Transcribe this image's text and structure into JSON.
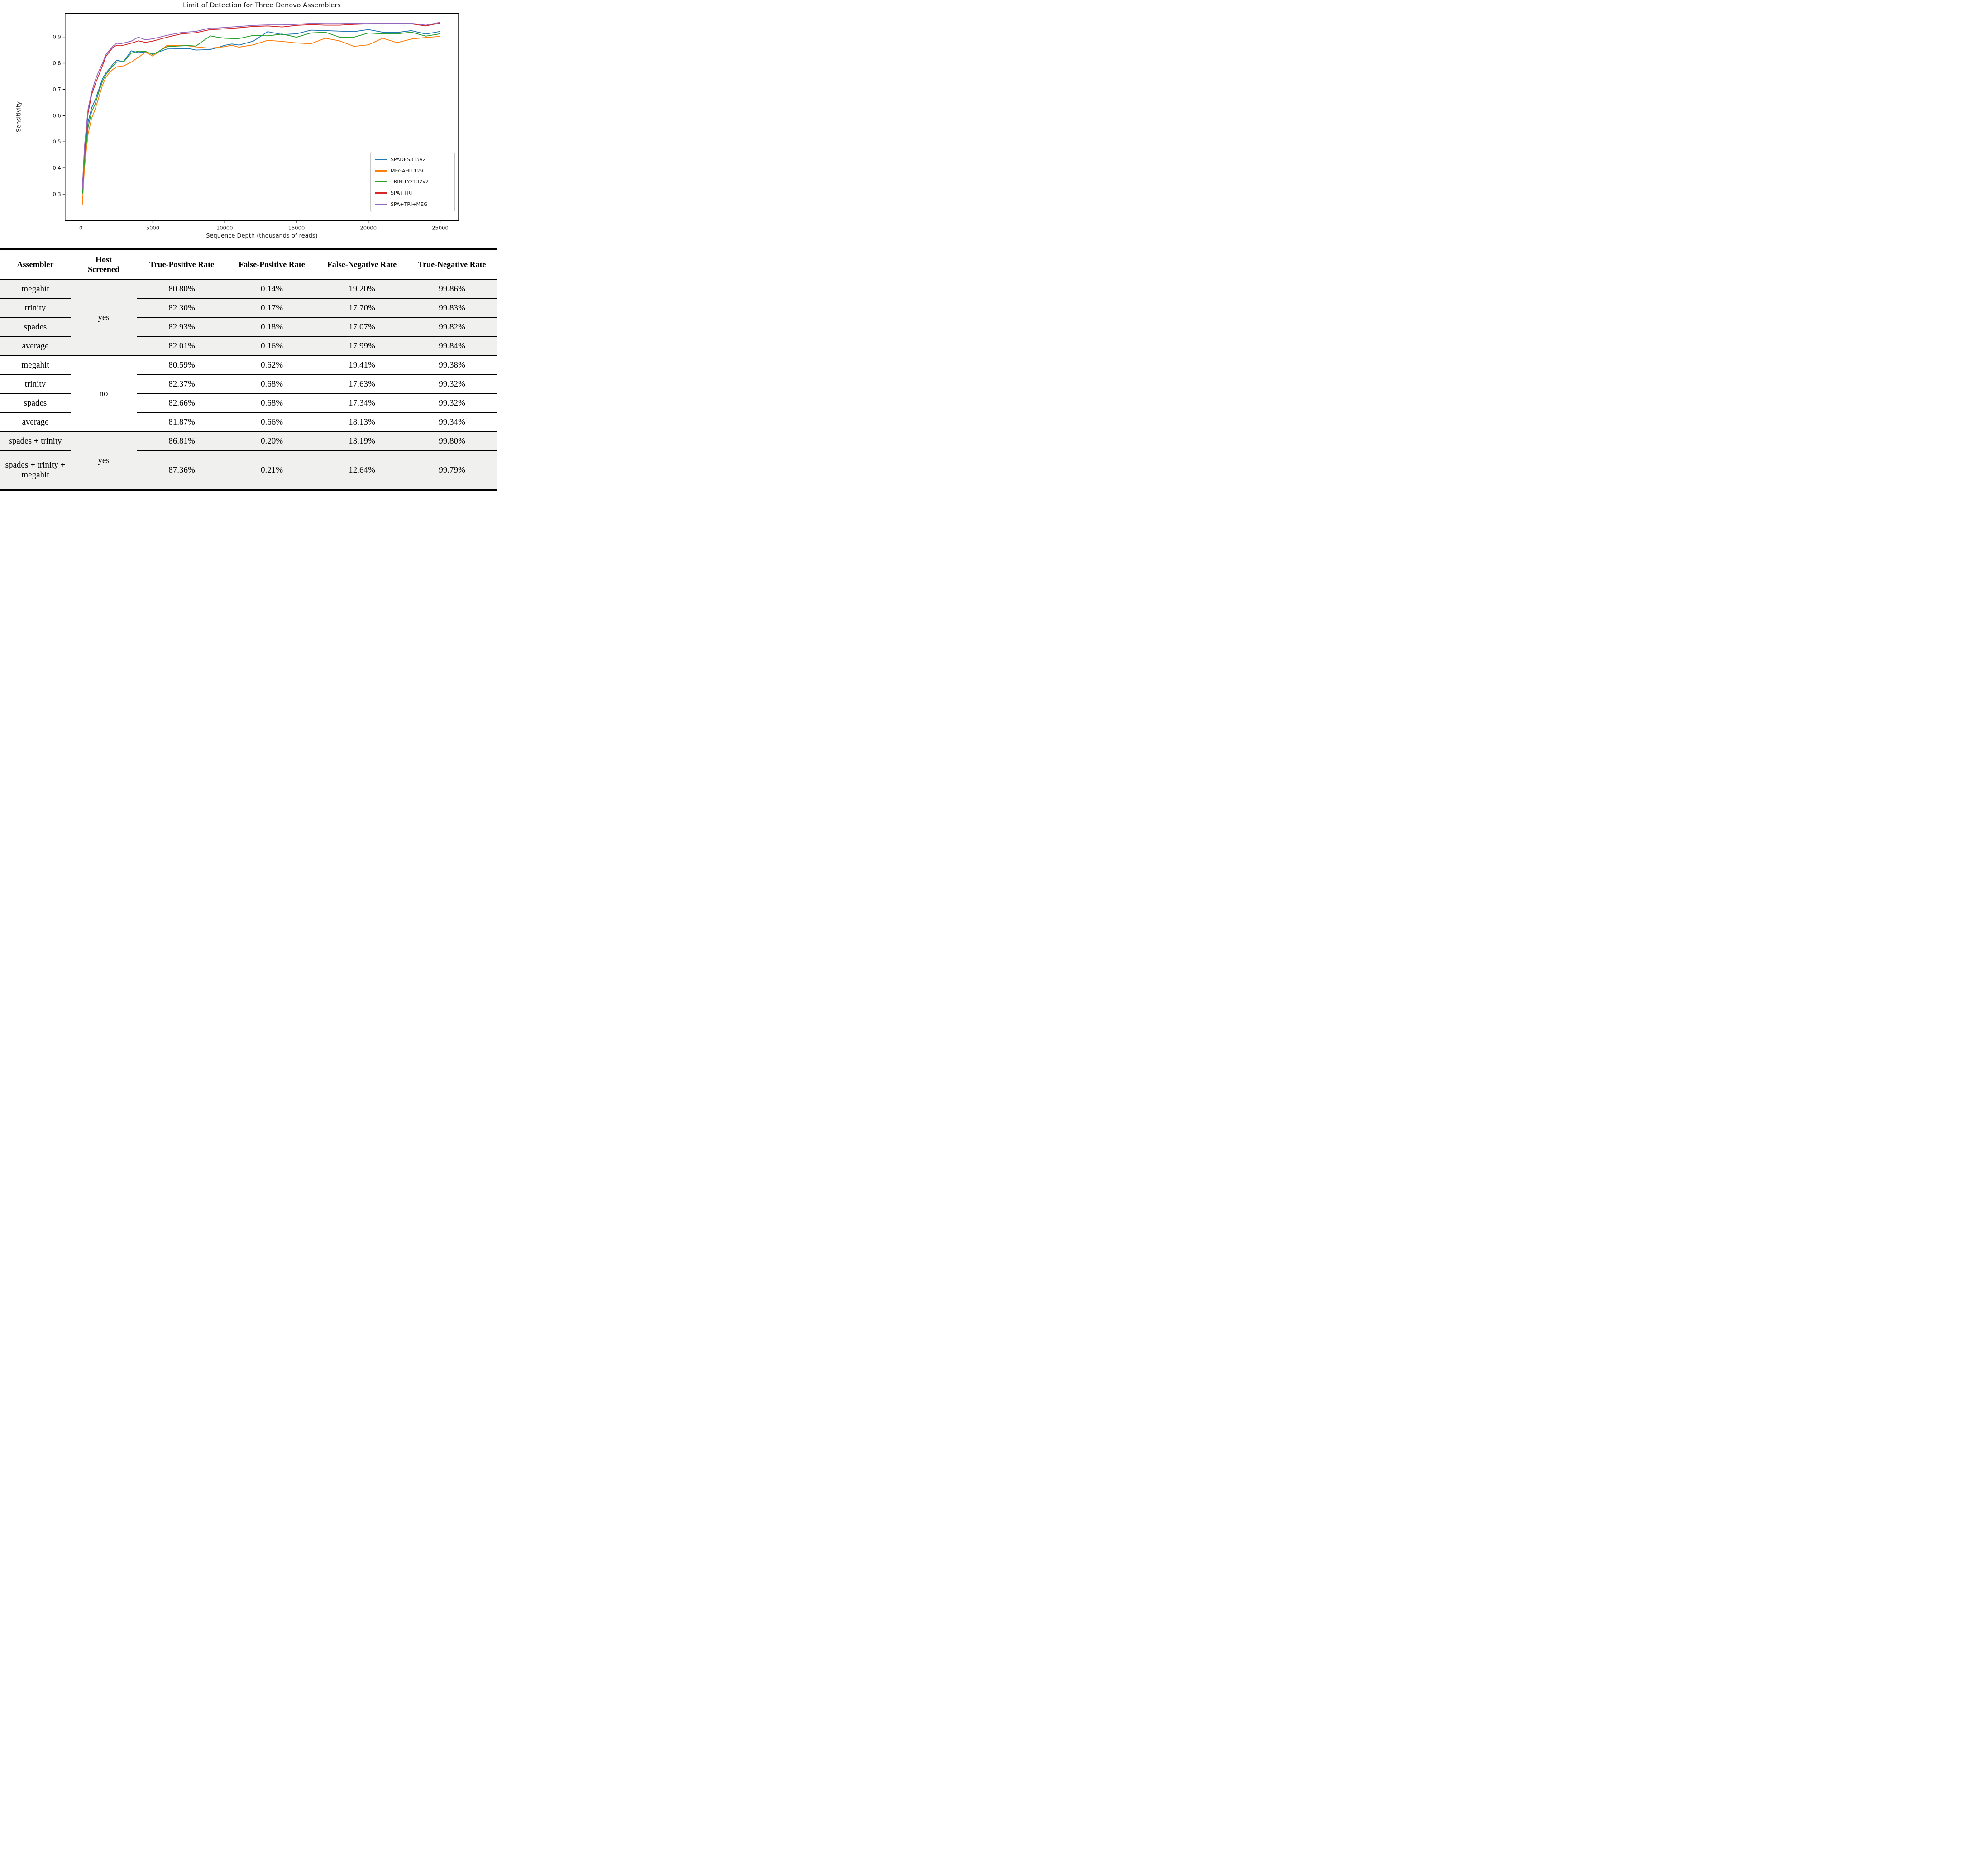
{
  "chart_data": {
    "type": "line",
    "title": "Limit of Detection for Three Denovo Assemblers",
    "xlabel": "Sequence Depth (thousands of reads)",
    "ylabel": "Sensitivity",
    "grid": false,
    "legend_position": "lower right inside plot",
    "xlim": [
      -1100,
      26275
    ],
    "ylim": [
      0.199,
      0.99
    ],
    "x_ticks": [
      0,
      5000,
      10000,
      15000,
      20000,
      25000
    ],
    "y_ticks": [
      0.3,
      0.4,
      0.5,
      0.6,
      0.7,
      0.8,
      0.9
    ],
    "x": [
      100,
      250,
      500,
      750,
      1000,
      1250,
      1500,
      1750,
      2000,
      2250,
      2500,
      2750,
      3000,
      3500,
      4000,
      4500,
      5000,
      6000,
      7000,
      7500,
      8000,
      9000,
      9500,
      10000,
      10500,
      11000,
      12000,
      13000,
      14000,
      15000,
      16000,
      17000,
      18000,
      19000,
      20000,
      21000,
      22000,
      23000,
      24000,
      25000
    ],
    "series": [
      {
        "name": "SPADES315v2",
        "color": "#1f77b4",
        "values": [
          0.305,
          0.45,
          0.575,
          0.63,
          0.66,
          0.7,
          0.74,
          0.763,
          0.78,
          0.797,
          0.812,
          0.808,
          0.808,
          0.847,
          0.84,
          0.843,
          0.835,
          0.854,
          0.855,
          0.856,
          0.85,
          0.852,
          0.859,
          0.868,
          0.873,
          0.869,
          0.884,
          0.92,
          0.909,
          0.912,
          0.926,
          0.924,
          0.922,
          0.92,
          0.928,
          0.918,
          0.917,
          0.924,
          0.911,
          0.921
        ]
      },
      {
        "name": "MEGAHIT129",
        "color": "#ff7f0e",
        "values": [
          0.26,
          0.4,
          0.53,
          0.59,
          0.625,
          0.67,
          0.715,
          0.747,
          0.765,
          0.777,
          0.786,
          0.788,
          0.79,
          0.804,
          0.822,
          0.842,
          0.827,
          0.868,
          0.868,
          0.866,
          0.862,
          0.857,
          0.86,
          0.863,
          0.868,
          0.861,
          0.87,
          0.887,
          0.883,
          0.877,
          0.874,
          0.895,
          0.885,
          0.864,
          0.87,
          0.895,
          0.878,
          0.892,
          0.898,
          0.902
        ]
      },
      {
        "name": "TRINITY2132v2",
        "color": "#2ca02c",
        "values": [
          0.3,
          0.43,
          0.555,
          0.615,
          0.645,
          0.69,
          0.73,
          0.757,
          0.775,
          0.79,
          0.805,
          0.805,
          0.806,
          0.838,
          0.846,
          0.845,
          0.833,
          0.863,
          0.866,
          0.867,
          0.865,
          0.904,
          0.899,
          0.895,
          0.894,
          0.894,
          0.906,
          0.904,
          0.911,
          0.899,
          0.915,
          0.918,
          0.899,
          0.899,
          0.915,
          0.912,
          0.912,
          0.918,
          0.903,
          0.912
        ]
      },
      {
        "name": "SPA+TRI",
        "color": "#d62728",
        "values": [
          0.322,
          0.47,
          0.61,
          0.68,
          0.72,
          0.755,
          0.79,
          0.826,
          0.845,
          0.861,
          0.868,
          0.866,
          0.869,
          0.876,
          0.885,
          0.879,
          0.884,
          0.899,
          0.912,
          0.914,
          0.916,
          0.928,
          0.929,
          0.931,
          0.933,
          0.935,
          0.94,
          0.942,
          0.938,
          0.944,
          0.947,
          0.945,
          0.945,
          0.948,
          0.95,
          0.95,
          0.95,
          0.95,
          0.942,
          0.953
        ]
      },
      {
        "name": "SPA+TRI+MEG",
        "color": "#9467bd",
        "values": [
          0.32,
          0.48,
          0.625,
          0.69,
          0.735,
          0.77,
          0.8,
          0.833,
          0.85,
          0.866,
          0.876,
          0.874,
          0.877,
          0.884,
          0.899,
          0.889,
          0.893,
          0.906,
          0.917,
          0.919,
          0.921,
          0.934,
          0.934,
          0.936,
          0.938,
          0.94,
          0.944,
          0.946,
          0.946,
          0.948,
          0.952,
          0.951,
          0.951,
          0.952,
          0.953,
          0.952,
          0.952,
          0.952,
          0.945,
          0.956
        ]
      }
    ]
  },
  "table": {
    "row_shade_color": "#f0f0ee",
    "rule_color": "#000000",
    "headers": [
      "Assembler",
      "Host Screened",
      "True-Positive Rate",
      "False-Positive Rate",
      "False-Negative Rate",
      "True-Negative Rate"
    ],
    "groups": [
      {
        "host_screened": "yes"
      },
      {
        "host_screened": "no"
      },
      {
        "host_screened": "yes"
      }
    ],
    "rows": [
      {
        "assembler": "megahit",
        "tp": "80.80%",
        "fp": "0.14%",
        "fn": "19.20%",
        "tn": "99.86%"
      },
      {
        "assembler": "trinity",
        "tp": "82.30%",
        "fp": "0.17%",
        "fn": "17.70%",
        "tn": "99.83%"
      },
      {
        "assembler": "spades",
        "tp": "82.93%",
        "fp": "0.18%",
        "fn": "17.07%",
        "tn": "99.82%"
      },
      {
        "assembler": "average",
        "tp": "82.01%",
        "fp": "0.16%",
        "fn": "17.99%",
        "tn": "99.84%"
      },
      {
        "assembler": "megahit",
        "tp": "80.59%",
        "fp": "0.62%",
        "fn": "19.41%",
        "tn": "99.38%"
      },
      {
        "assembler": "trinity",
        "tp": "82.37%",
        "fp": "0.68%",
        "fn": "17.63%",
        "tn": "99.32%"
      },
      {
        "assembler": "spades",
        "tp": "82.66%",
        "fp": "0.68%",
        "fn": "17.34%",
        "tn": "99.32%"
      },
      {
        "assembler": "average",
        "tp": "81.87%",
        "fp": "0.66%",
        "fn": "18.13%",
        "tn": "99.34%"
      },
      {
        "assembler": "spades + trinity",
        "tp": "86.81%",
        "fp": "0.20%",
        "fn": "13.19%",
        "tn": "99.80%"
      },
      {
        "assembler": "spades + trinity + megahit",
        "tp": "87.36%",
        "fp": "0.21%",
        "fn": "12.64%",
        "tn": "99.79%"
      }
    ]
  }
}
